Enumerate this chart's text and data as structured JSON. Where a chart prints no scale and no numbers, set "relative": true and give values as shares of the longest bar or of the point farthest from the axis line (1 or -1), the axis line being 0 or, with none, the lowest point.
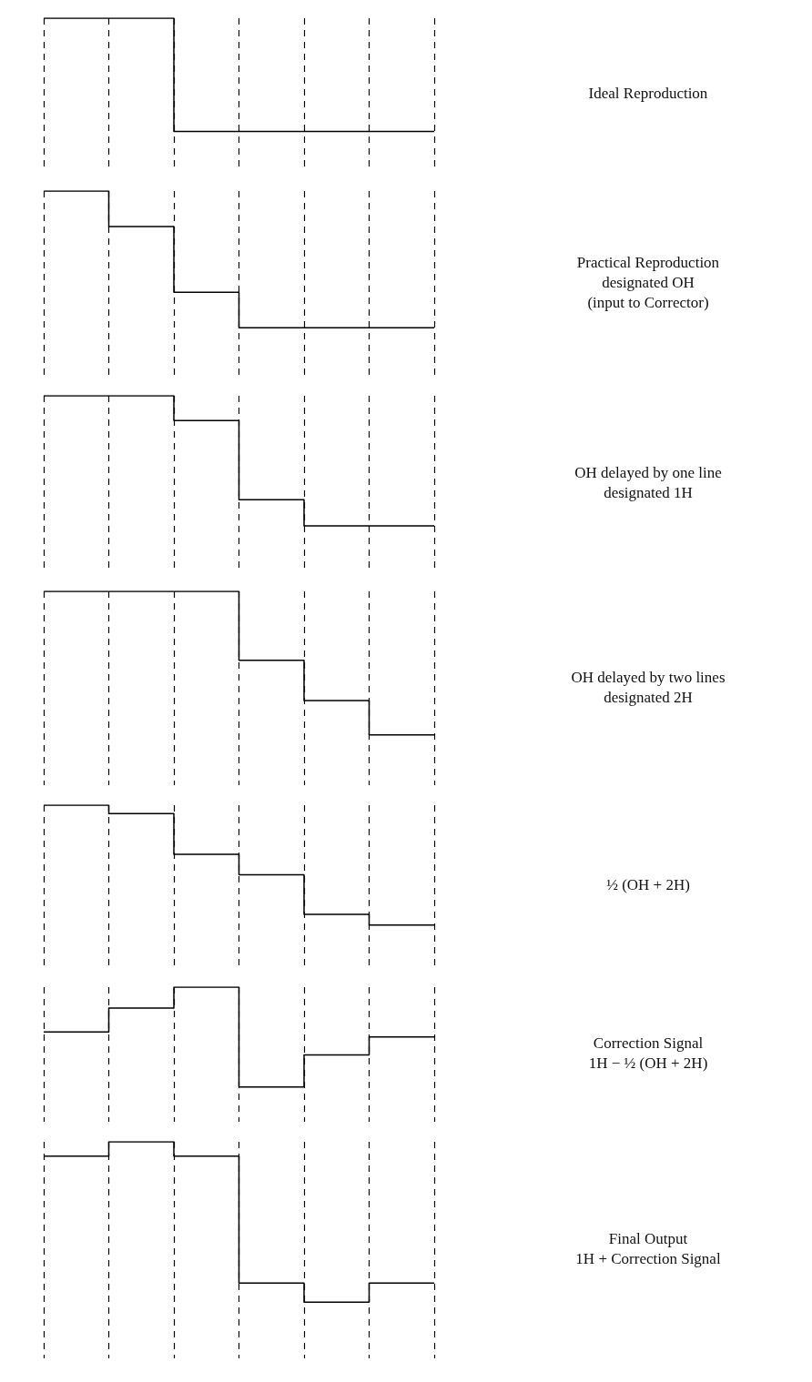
{
  "chart_data": [
    {
      "type": "step",
      "annotations": [
        "Ideal Reproduction"
      ],
      "categories": [
        null,
        null,
        null,
        null,
        null,
        null,
        null
      ],
      "values": [
        1,
        1,
        0,
        0,
        0,
        0,
        0
      ],
      "relative": true,
      "color": "#000000",
      "grid": "x",
      "marker": "none"
    },
    {
      "type": "step",
      "annotations": [
        "Practical Reproduction\ndesignated OH\n(input to Corrector)"
      ],
      "categories": [
        null,
        null,
        null,
        null,
        null,
        null,
        null
      ],
      "values": [
        1,
        0.74,
        0.26,
        0,
        0,
        0,
        0
      ],
      "relative": true,
      "color": "#000000",
      "grid": "x",
      "marker": "none"
    },
    {
      "type": "step",
      "annotations": [
        "OH delayed by one line\ndesignated 1H"
      ],
      "categories": [
        null,
        null,
        null,
        null,
        null,
        null,
        null
      ],
      "values": [
        1,
        1,
        0.81,
        0.2,
        0,
        0,
        0
      ],
      "relative": true,
      "color": "#000000",
      "grid": "x",
      "marker": "none"
    },
    {
      "type": "step",
      "annotations": [
        "OH delayed by two lines\ndesignated 2H"
      ],
      "categories": [
        null,
        null,
        null,
        null,
        null,
        null,
        null
      ],
      "values": [
        1,
        1,
        1,
        0.52,
        0.24,
        0,
        0
      ],
      "relative": true,
      "color": "#000000",
      "grid": "x",
      "marker": "none"
    },
    {
      "type": "step",
      "annotations": [
        "½  (OH + 2H)"
      ],
      "categories": [
        null,
        null,
        null,
        null,
        null,
        null,
        null
      ],
      "values": [
        1,
        0.93,
        0.59,
        0.42,
        0.09,
        0,
        0
      ],
      "relative": true,
      "color": "#000000",
      "grid": "x",
      "marker": "none"
    },
    {
      "type": "step",
      "annotations": [
        "Correction Signal\n1H − ½ (OH + 2H)"
      ],
      "categories": [
        null,
        null,
        null,
        null,
        null,
        null,
        null
      ],
      "values": [
        0.55,
        0.79,
        1,
        0,
        0.32,
        0.5,
        0.5
      ],
      "relative": true,
      "color": "#000000",
      "grid": "x",
      "marker": "none"
    },
    {
      "type": "step",
      "annotations": [
        "Final Output\n1H + Correction Signal"
      ],
      "categories": [
        null,
        null,
        null,
        null,
        null,
        null,
        null
      ],
      "values": [
        0.91,
        1,
        0.91,
        0.12,
        0,
        0.12,
        0.12
      ],
      "relative": true,
      "color": "#000000",
      "grid": "x",
      "marker": "none"
    }
  ]
}
